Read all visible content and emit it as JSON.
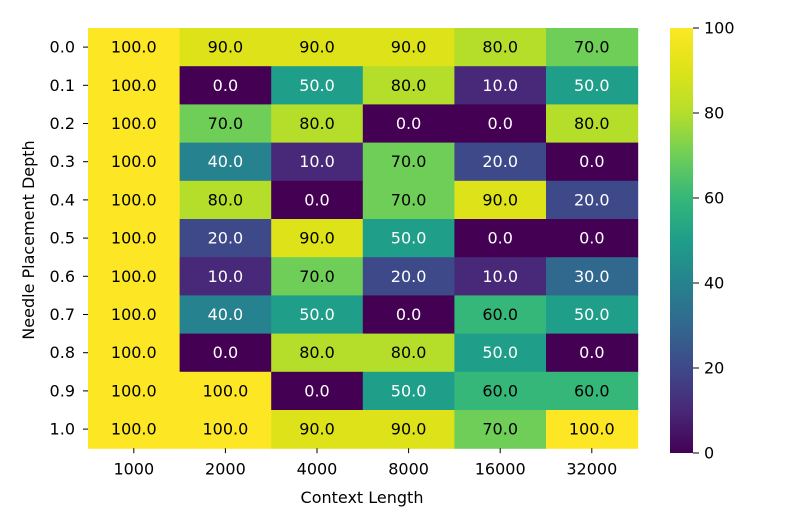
{
  "chart_data": {
    "type": "heatmap",
    "title": "",
    "xlabel": "Context Length",
    "ylabel": "Needle Placement Depth",
    "x_categories": [
      "1000",
      "2000",
      "4000",
      "8000",
      "16000",
      "32000"
    ],
    "y_categories": [
      "0.0",
      "0.1",
      "0.2",
      "0.3",
      "0.4",
      "0.5",
      "0.6",
      "0.7",
      "0.8",
      "0.9",
      "1.0"
    ],
    "values": [
      [
        100,
        90,
        90,
        90,
        80,
        70
      ],
      [
        100,
        0,
        50,
        80,
        10,
        50
      ],
      [
        100,
        70,
        80,
        0,
        0,
        80
      ],
      [
        100,
        40,
        10,
        70,
        20,
        0
      ],
      [
        100,
        80,
        0,
        70,
        90,
        20
      ],
      [
        100,
        20,
        90,
        50,
        0,
        0
      ],
      [
        100,
        10,
        70,
        20,
        10,
        30
      ],
      [
        100,
        40,
        50,
        0,
        60,
        50
      ],
      [
        100,
        0,
        80,
        80,
        50,
        0
      ],
      [
        100,
        100,
        0,
        50,
        60,
        60
      ],
      [
        100,
        100,
        90,
        90,
        70,
        100
      ]
    ],
    "cell_label_format": "one-decimal",
    "colormap": "viridis",
    "colorbar": {
      "range": [
        0,
        100
      ],
      "ticks": [
        "0",
        "20",
        "40",
        "60",
        "80",
        "100"
      ],
      "placement": "right"
    },
    "colors": {
      "text_dark": "#000000",
      "text_light": "#ffffff"
    }
  }
}
